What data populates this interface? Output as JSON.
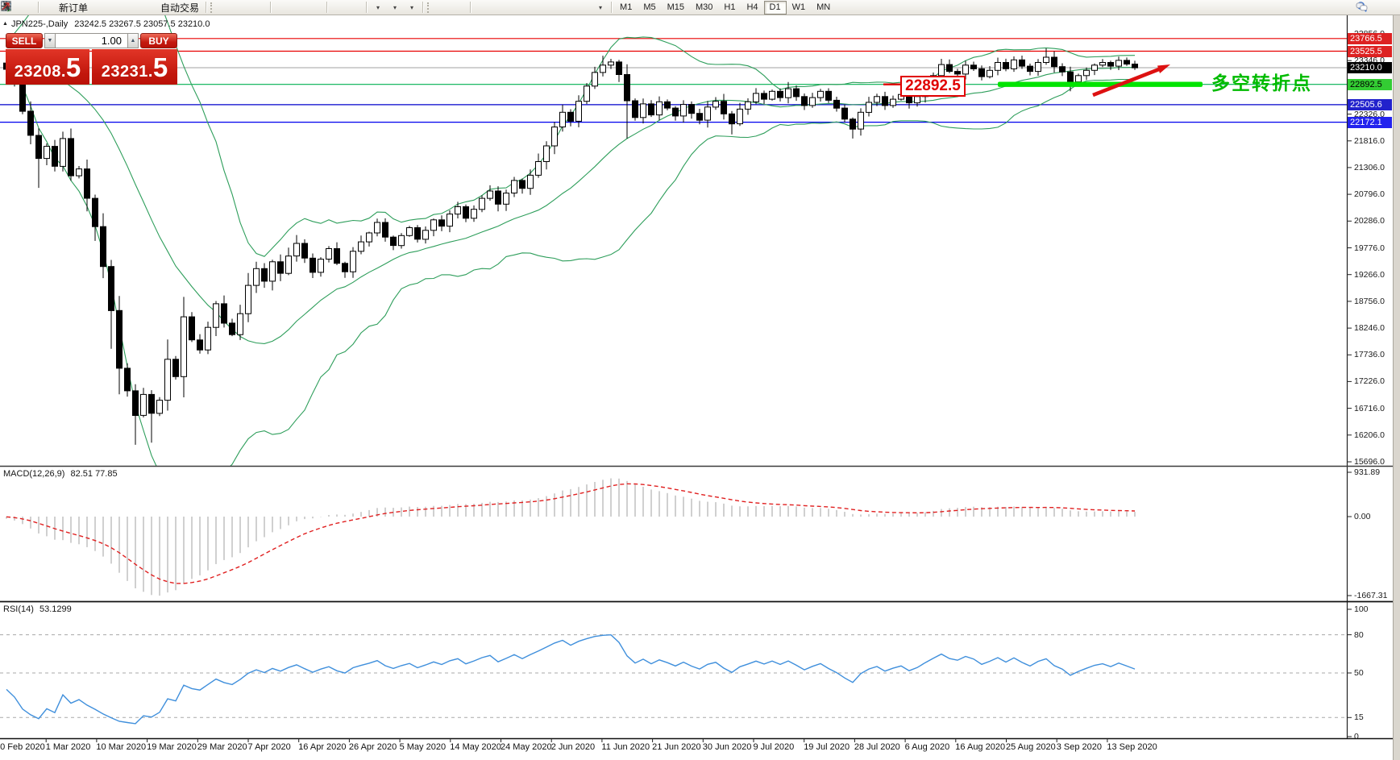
{
  "toolbar": {
    "groups": [
      {
        "items": [
          {
            "name": "market-watch",
            "icon": "panel"
          },
          {
            "name": "data-window",
            "icon": "magwin"
          }
        ]
      },
      {
        "items": [
          {
            "name": "new-order",
            "icon": "docplus",
            "label": "新订单"
          },
          {
            "name": "metaeditor",
            "icon": "cube"
          },
          {
            "name": "terminal",
            "icon": "person"
          },
          {
            "name": "signals",
            "icon": "signal"
          },
          {
            "name": "autotrading",
            "icon": "robot",
            "label": "自动交易"
          }
        ]
      },
      {
        "items": [
          {
            "name": "bar-chart-mode",
            "icon": "bars"
          },
          {
            "name": "candlestick-mode",
            "icon": "candles"
          },
          {
            "name": "line-chart-mode",
            "icon": "linech"
          }
        ]
      },
      {
        "items": [
          {
            "name": "zoom-in",
            "icon": "zoomin"
          },
          {
            "name": "zoom-out",
            "icon": "zoomout"
          },
          {
            "name": "tile-windows",
            "icon": "tiles"
          }
        ]
      },
      {
        "items": [
          {
            "name": "auto-scroll",
            "icon": "autoscroll"
          },
          {
            "name": "chart-shift",
            "icon": "chartshift"
          }
        ]
      },
      {
        "items": [
          {
            "name": "indicators-list",
            "icon": "indicators",
            "caret": true
          },
          {
            "name": "periods",
            "icon": "clock",
            "caret": true
          },
          {
            "name": "templates",
            "icon": "template",
            "caret": true
          }
        ]
      },
      {
        "items": [
          {
            "name": "cursor",
            "icon": "cursor"
          },
          {
            "name": "crosshair",
            "icon": "crosshair"
          }
        ]
      },
      {
        "items": [
          {
            "name": "vertical-line",
            "icon": "vline"
          },
          {
            "name": "horizontal-line",
            "icon": "hline"
          },
          {
            "name": "trend-line",
            "icon": "tline"
          },
          {
            "name": "equidistant-channel",
            "icon": "channel"
          },
          {
            "name": "fibonacci-retracement",
            "icon": "fibo"
          },
          {
            "name": "text",
            "icon": "textA"
          },
          {
            "name": "text-label",
            "icon": "labelT"
          },
          {
            "name": "arrows-tool",
            "icon": "arrowsTool",
            "caret": true
          }
        ]
      }
    ],
    "timeframes": [
      "M1",
      "M5",
      "M15",
      "M30",
      "H1",
      "H4",
      "D1",
      "W1",
      "MN"
    ],
    "active_timeframe": "D1",
    "right_icons": [
      {
        "name": "search",
        "icon": "search"
      },
      {
        "name": "chat",
        "icon": "chat"
      }
    ]
  },
  "chart": {
    "title": "JPN225-,Daily",
    "ohlc": "23242.5 23267.5 23057.5 23210.0"
  },
  "trade_panel": {
    "sell_label": "SELL",
    "buy_label": "BUY",
    "volume": "1.00",
    "sell_price_main": "23208.",
    "sell_price_big": "5",
    "buy_price_main": "23231.",
    "buy_price_big": "5"
  },
  "annotations": {
    "price_box_text": "22892.5",
    "turning_point_text": "多空转折点",
    "box_color": "#e00000",
    "highlight_color": "#00e400",
    "arrow_color": "#dd1111",
    "text_color": "#00bb00"
  },
  "chart_data": {
    "type": "candlestick",
    "symbol": "JPN225-",
    "timeframe": "Daily",
    "ohlc_display": {
      "open": 23242.5,
      "high": 23267.5,
      "low": 23057.5,
      "close": 23210.0
    },
    "y_axis": {
      "ticks": [
        "23856.0",
        "23346.0",
        "22836.0",
        "22326.0",
        "21816.0",
        "21306.0",
        "20796.0",
        "20286.0",
        "19776.0",
        "19266.0",
        "18756.0",
        "18246.0",
        "17736.0",
        "17226.0",
        "16716.0",
        "16206.0",
        "15696.0"
      ],
      "tick_values": [
        23856,
        23346,
        22836,
        22326,
        21816,
        21306,
        20796,
        20286,
        19776,
        19266,
        18756,
        18246,
        17736,
        17226,
        16716,
        16206,
        15696
      ]
    },
    "x_axis": {
      "dates": [
        "20 Feb 2020",
        "1 Mar 2020",
        "10 Mar 2020",
        "19 Mar 2020",
        "29 Mar 2020",
        "7 Apr 2020",
        "16 Apr 2020",
        "26 Apr 2020",
        "5 May 2020",
        "14 May 2020",
        "24 May 2020",
        "2 Jun 2020",
        "11 Jun 2020",
        "21 Jun 2020",
        "30 Jun 2020",
        "9 Jul 2020",
        "19 Jul 2020",
        "28 Jul 2020",
        "6 Aug 2020",
        "16 Aug 2020",
        "25 Aug 2020",
        "3 Sep 2020",
        "13 Sep 2020"
      ]
    },
    "price_levels": [
      {
        "price": 23766.5,
        "label": "23766.5",
        "color": "#e80000",
        "label_bg": "#dd2222",
        "label_fg": "#ffffff"
      },
      {
        "price": 23525.5,
        "label": "23525.5",
        "color": "#e80000",
        "label_bg": "#dd2222",
        "label_fg": "#ffffff"
      },
      {
        "price": 23210.0,
        "label": "23210.0",
        "color": "#b4b4b4",
        "label_bg": "#000000",
        "label_fg": "#ffffff",
        "role": "bid"
      },
      {
        "price": 22892.5,
        "label": "22892.5",
        "color": "#00b050",
        "label_bg": "#33cc33",
        "label_fg": "#000000"
      },
      {
        "price": 22505.6,
        "label": "22505.6",
        "color": "#0000cc",
        "label_bg": "#2222cc",
        "label_fg": "#ffffff"
      },
      {
        "price": 22172.1,
        "label": "22172.1",
        "color": "#0000ee",
        "label_bg": "#2222ee",
        "label_fg": "#ffffff"
      }
    ],
    "first_open": 23300,
    "closes": [
      23180,
      22950,
      22380,
      21920,
      21480,
      21710,
      21330,
      21860,
      21150,
      21280,
      20720,
      20180,
      19420,
      18580,
      17480,
      17050,
      16580,
      16980,
      16620,
      16870,
      17650,
      17320,
      18460,
      18020,
      17830,
      18260,
      18710,
      18340,
      18120,
      18520,
      19060,
      19380,
      19140,
      19510,
      19290,
      19620,
      19860,
      19580,
      19310,
      19560,
      19760,
      19480,
      19320,
      19710,
      19890,
      20060,
      20260,
      19980,
      19820,
      20010,
      20160,
      19940,
      20110,
      20310,
      20190,
      20420,
      20560,
      20340,
      20510,
      20720,
      20860,
      20610,
      20820,
      21060,
      20910,
      21160,
      21420,
      21720,
      22080,
      22360,
      22190,
      22570,
      22860,
      23120,
      23260,
      23320,
      23080,
      22580,
      22260,
      22520,
      22310,
      22560,
      22440,
      22290,
      22510,
      22340,
      22210,
      22460,
      22570,
      22330,
      22140,
      22420,
      22560,
      22720,
      22610,
      22760,
      22640,
      22810,
      22660,
      22490,
      22640,
      22760,
      22590,
      22440,
      22230,
      22040,
      22360,
      22550,
      22660,
      22490,
      22610,
      22700,
      22540,
      22660,
      22860,
      23060,
      23270,
      23140,
      23090,
      23260,
      23190,
      23040,
      23160,
      23310,
      23190,
      23360,
      23240,
      23140,
      23310,
      23410,
      23230,
      23130,
      22940,
      23060,
      23160,
      23260,
      23310,
      23240,
      23350,
      23280,
      23210
    ],
    "warmup_closes": [
      23480,
      23620,
      23550,
      23700,
      23640,
      23580,
      23720,
      23660,
      23610,
      23690,
      23560,
      23640,
      23580,
      23520,
      23600,
      23660,
      23590,
      23530,
      23610,
      23550,
      23490,
      23560,
      23620,
      23440,
      23360
    ],
    "wick_overrides": {
      "4": {
        "low": 20920
      },
      "13": {
        "low": 17850
      },
      "16": {
        "low": 16020
      },
      "18": {
        "low": 16060
      },
      "74": {
        "high": 23440
      },
      "77": {
        "low": 21860
      },
      "90": {
        "low": 21940
      },
      "105": {
        "low": 21860
      },
      "116": {
        "high": 23380
      },
      "129": {
        "high": 23580
      },
      "132": {
        "low": 22760
      }
    },
    "bollinger": {
      "period": 20,
      "deviation": 2,
      "color": "#2e9e5b"
    },
    "macd": {
      "label": "MACD(12,26,9)",
      "values_text": "82.51 77.85",
      "fast": 12,
      "slow": 26,
      "signal": 9,
      "axis_ticks": [
        "931.89",
        "0.00",
        "-1667.31"
      ],
      "axis_values": [
        931.89,
        0,
        -1667.31
      ],
      "histogram_color": "#c4c4c4",
      "signal_color": "#e02020"
    },
    "rsi": {
      "label": "RSI(14)",
      "value_text": "53.1299",
      "period": 14,
      "axis_ticks": [
        "100",
        "80",
        "50",
        "15",
        "0"
      ],
      "axis_values": [
        100,
        80,
        50,
        15,
        0
      ],
      "dashed_levels": [
        80,
        50,
        15
      ],
      "line_color": "#3f8fdc"
    }
  }
}
